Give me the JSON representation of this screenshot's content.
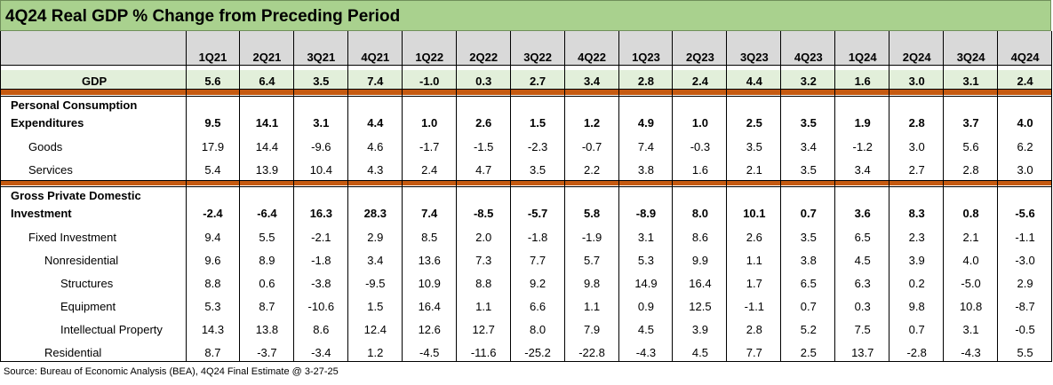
{
  "title": "4Q24 Real GDP % Change from Preceding Period",
  "source": "Source: Bureau of Economic Analysis (BEA), 4Q24 Final Estimate @ 3-27-25",
  "colors": {
    "title_bg": "#a9d18e",
    "header_bg": "#d9d9d9",
    "gdp_row_bg": "#e2efda",
    "separator": "#c55a11"
  },
  "chart_data": {
    "type": "table",
    "columns": [
      "1Q21",
      "2Q21",
      "3Q21",
      "4Q21",
      "1Q22",
      "2Q22",
      "3Q22",
      "4Q22",
      "1Q23",
      "2Q23",
      "3Q23",
      "4Q23",
      "1Q24",
      "2Q24",
      "3Q24",
      "4Q24"
    ],
    "rows": [
      {
        "label_lines": [
          "GDP"
        ],
        "indent": 0,
        "bold": true,
        "values": [
          "5.6",
          "6.4",
          "3.5",
          "7.4",
          "-1.0",
          "0.3",
          "2.7",
          "3.4",
          "2.8",
          "2.4",
          "4.4",
          "3.2",
          "1.6",
          "3.0",
          "3.1",
          "2.4"
        ]
      },
      {
        "label_lines": [
          "Personal Consumption",
          "Expenditures"
        ],
        "indent": 0,
        "bold": true,
        "values": [
          "9.5",
          "14.1",
          "3.1",
          "4.4",
          "1.0",
          "2.6",
          "1.5",
          "1.2",
          "4.9",
          "1.0",
          "2.5",
          "3.5",
          "1.9",
          "2.8",
          "3.7",
          "4.0"
        ]
      },
      {
        "label_lines": [
          "Goods"
        ],
        "indent": 1,
        "bold": false,
        "values": [
          "17.9",
          "14.4",
          "-9.6",
          "4.6",
          "-1.7",
          "-1.5",
          "-2.3",
          "-0.7",
          "7.4",
          "-0.3",
          "3.5",
          "3.4",
          "-1.2",
          "3.0",
          "5.6",
          "6.2"
        ]
      },
      {
        "label_lines": [
          "Services"
        ],
        "indent": 1,
        "bold": false,
        "values": [
          "5.4",
          "13.9",
          "10.4",
          "4.3",
          "2.4",
          "4.7",
          "3.5",
          "2.2",
          "3.8",
          "1.6",
          "2.1",
          "3.5",
          "3.4",
          "2.7",
          "2.8",
          "3.0"
        ]
      },
      {
        "label_lines": [
          "Gross Private Domestic",
          "Investment"
        ],
        "indent": 0,
        "bold": true,
        "values": [
          "-2.4",
          "-6.4",
          "16.3",
          "28.3",
          "7.4",
          "-8.5",
          "-5.7",
          "5.8",
          "-8.9",
          "8.0",
          "10.1",
          "0.7",
          "3.6",
          "8.3",
          "0.8",
          "-5.6"
        ]
      },
      {
        "label_lines": [
          "Fixed Investment"
        ],
        "indent": 1,
        "bold": false,
        "values": [
          "9.4",
          "5.5",
          "-2.1",
          "2.9",
          "8.5",
          "2.0",
          "-1.8",
          "-1.9",
          "3.1",
          "8.6",
          "2.6",
          "3.5",
          "6.5",
          "2.3",
          "2.1",
          "-1.1"
        ]
      },
      {
        "label_lines": [
          "Nonresidential"
        ],
        "indent": 2,
        "bold": false,
        "values": [
          "9.6",
          "8.9",
          "-1.8",
          "3.4",
          "13.6",
          "7.3",
          "7.7",
          "5.7",
          "5.3",
          "9.9",
          "1.1",
          "3.8",
          "4.5",
          "3.9",
          "4.0",
          "-3.0"
        ]
      },
      {
        "label_lines": [
          "Structures"
        ],
        "indent": 3,
        "bold": false,
        "values": [
          "8.8",
          "0.6",
          "-3.8",
          "-9.5",
          "10.9",
          "8.8",
          "9.2",
          "9.8",
          "14.9",
          "16.4",
          "1.7",
          "6.5",
          "6.3",
          "0.2",
          "-5.0",
          "2.9"
        ]
      },
      {
        "label_lines": [
          "Equipment"
        ],
        "indent": 3,
        "bold": false,
        "values": [
          "5.3",
          "8.7",
          "-10.6",
          "1.5",
          "16.4",
          "1.1",
          "6.6",
          "1.1",
          "0.9",
          "12.5",
          "-1.1",
          "0.7",
          "0.3",
          "9.8",
          "10.8",
          "-8.7"
        ]
      },
      {
        "label_lines": [
          "Intellectual Property"
        ],
        "indent": 3,
        "bold": false,
        "values": [
          "14.3",
          "13.8",
          "8.6",
          "12.4",
          "12.6",
          "12.7",
          "8.0",
          "7.9",
          "4.5",
          "3.9",
          "2.8",
          "5.2",
          "7.5",
          "0.7",
          "3.1",
          "-0.5"
        ]
      },
      {
        "label_lines": [
          "Residential"
        ],
        "indent": 2,
        "bold": false,
        "values": [
          "8.7",
          "-3.7",
          "-3.4",
          "1.2",
          "-4.5",
          "-11.6",
          "-25.2",
          "-22.8",
          "-4.3",
          "4.5",
          "7.7",
          "2.5",
          "13.7",
          "-2.8",
          "-4.3",
          "5.5"
        ]
      }
    ]
  }
}
